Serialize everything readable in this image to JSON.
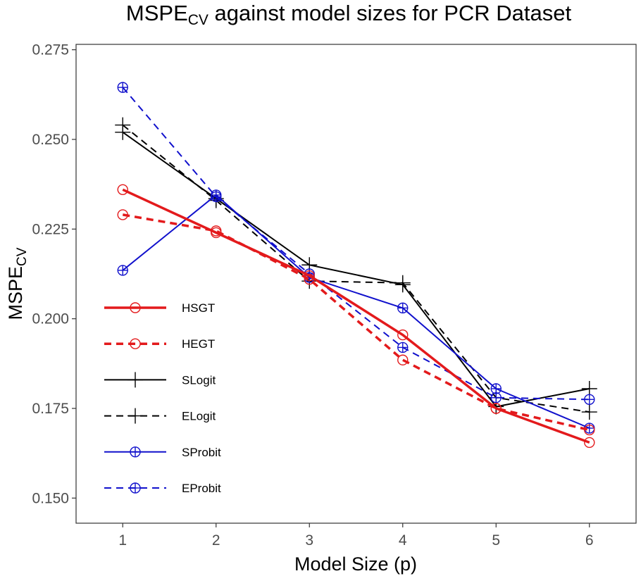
{
  "chart_data": {
    "type": "line",
    "title": {
      "main": "MSPE",
      "sub": "CV",
      "rest": " against model sizes for PCR Dataset"
    },
    "xlabel": "Model Size (p)",
    "ylabel": {
      "main": "MSPE",
      "sub": "CV"
    },
    "x": [
      1,
      2,
      3,
      4,
      5,
      6
    ],
    "xlim": [
      0.5,
      6.5
    ],
    "ylim": [
      0.143,
      0.2765
    ],
    "xticks": [
      "1",
      "2",
      "3",
      "4",
      "5",
      "6"
    ],
    "yticks": [
      "0.150",
      "0.175",
      "0.200",
      "0.225",
      "0.250",
      "0.275"
    ],
    "grid": false,
    "legend_position": "left-inside",
    "series": [
      {
        "name": "HSGT",
        "color": "#e31a1c",
        "dash": "solid",
        "width": 3.5,
        "marker": "circle",
        "values": [
          0.236,
          0.224,
          0.212,
          0.1955,
          0.175,
          0.1655
        ]
      },
      {
        "name": "HEGT",
        "color": "#e31a1c",
        "dash": "dashed",
        "width": 3.5,
        "marker": "circle",
        "values": [
          0.229,
          0.2245,
          0.211,
          0.1885,
          0.175,
          0.169
        ]
      },
      {
        "name": "SLogit",
        "color": "#000000",
        "dash": "solid",
        "width": 2,
        "marker": "plus",
        "values": [
          0.252,
          0.2335,
          0.215,
          0.2095,
          0.1755,
          0.1805
        ]
      },
      {
        "name": "ELogit",
        "color": "#000000",
        "dash": "dashed",
        "width": 2,
        "marker": "plus",
        "values": [
          0.254,
          0.233,
          0.2105,
          0.21,
          0.178,
          0.174
        ]
      },
      {
        "name": "SProbit",
        "color": "#1010cc",
        "dash": "solid",
        "width": 2,
        "marker": "circle-plus",
        "values": [
          0.2135,
          0.2345,
          0.2115,
          0.203,
          0.1805,
          0.1695
        ]
      },
      {
        "name": "EProbit",
        "color": "#1010cc",
        "dash": "dashed",
        "width": 2,
        "marker": "circle-plus",
        "values": [
          0.2645,
          0.234,
          0.2125,
          0.192,
          0.178,
          0.1775
        ]
      }
    ]
  }
}
